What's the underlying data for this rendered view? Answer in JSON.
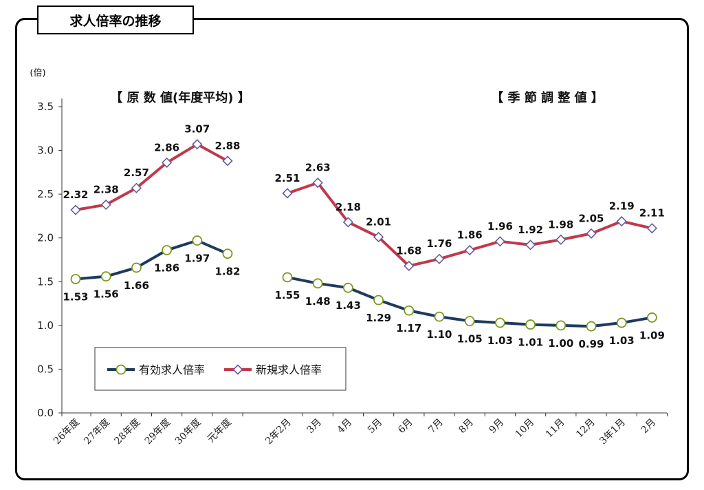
{
  "header": {
    "title": "求人倍率の推移"
  },
  "colors": {
    "effective": "#1f3a5f",
    "new": "#c0394b",
    "marker_green": "#7a9a1a",
    "marker_purple": "#6b5aa0"
  },
  "chart_data": {
    "type": "line",
    "unit_label": "(倍)",
    "ylim": [
      0,
      3.5
    ],
    "yticks": [
      "0.0",
      "0.5",
      "1.0",
      "1.5",
      "2.0",
      "2.5",
      "3.0",
      "3.5"
    ],
    "grid": false,
    "legend_position": "bottom-left",
    "sections": [
      {
        "title": "【 原 数 値(年度平均) 】",
        "categories": [
          "26年度",
          "27年度",
          "28年度",
          "29年度",
          "30年度",
          "元年度"
        ],
        "series": [
          {
            "name": "有効求人倍率",
            "values": [
              1.53,
              1.56,
              1.66,
              1.86,
              1.97,
              1.82
            ]
          },
          {
            "name": "新規求人倍率",
            "values": [
              2.32,
              2.38,
              2.57,
              2.86,
              3.07,
              2.88
            ]
          }
        ]
      },
      {
        "title": "【 季 節 調 整 値 】",
        "categories": [
          "2年2月",
          "3月",
          "4月",
          "5月",
          "6月",
          "7月",
          "8月",
          "9月",
          "10月",
          "11月",
          "12月",
          "3年1月",
          "2月"
        ],
        "series": [
          {
            "name": "有効求人倍率",
            "values": [
              1.55,
              1.48,
              1.43,
              1.29,
              1.17,
              1.1,
              1.05,
              1.03,
              1.01,
              1.0,
              0.99,
              1.03,
              1.09
            ]
          },
          {
            "name": "新規求人倍率",
            "values": [
              2.51,
              2.63,
              2.18,
              2.01,
              1.68,
              1.76,
              1.86,
              1.96,
              1.92,
              1.98,
              2.05,
              2.19,
              2.11
            ]
          }
        ]
      }
    ],
    "legend": [
      "有効求人倍率",
      "新規求人倍率"
    ]
  }
}
